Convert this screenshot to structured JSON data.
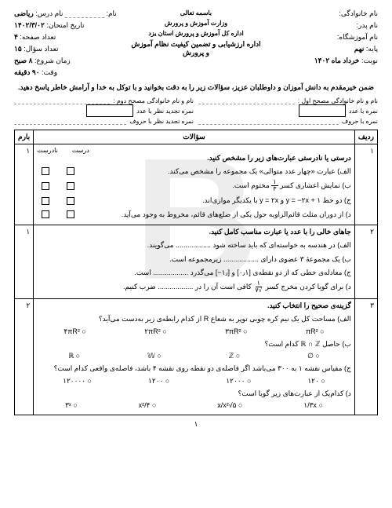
{
  "watermark": "B",
  "header": {
    "right": {
      "family": "نام خانوادگی:",
      "father": "نام پدر:",
      "school": "نام آموزشگاه:",
      "grade_label": "پایه:",
      "grade": "نهم",
      "term_label": "نوبت:",
      "term": "خرداد ماه ۱۴۰۲"
    },
    "center": {
      "bismillah": "باسمه تعالی",
      "ministry": "وزارت آموزش و پرورش",
      "dept": "اداره کل آموزش و پرورش استان یزد",
      "office": "اداره ارزشیابی و تضمین کیفیت نظام آموزش و پرورش"
    },
    "left": {
      "name_label": "نام:",
      "subject_label": "نام درس:",
      "subject": "ریاضی",
      "date_label": "تاریخ امتحان:",
      "date": "۱۴۰۲/۳/۰۲",
      "pages_label": "تعداد صفحه:",
      "pages": "۴",
      "qcount_label": "تعداد سؤال:",
      "qcount": "۱۵",
      "start_label": "زمان شروع:",
      "start": "۸ صبح",
      "duration_label": "وقت:",
      "duration": "۹۰ دقیقه"
    }
  },
  "intro": "ضمن خیرمقدم به دانش آموزان و داوطلبان عزیز، سؤالات زیر را به دقت بخوانید و با توکل به خدا و آرامش خاطر پاسخ دهید.",
  "grader": {
    "g1_name": "نام و نام خانوادگی مصحح اول :",
    "g2_name": "نام و نام خانوادگی مصحح دوم :",
    "score_num": "نمره با عدد",
    "score_num2": "نمره تجدید نظر با عدد",
    "score_txt": "نمره با حروف",
    "score_txt2": "نمره تجدید نظر با حروف"
  },
  "table": {
    "h_idx": "ردیف",
    "h_q": "سؤالات",
    "h_score": "بارم"
  },
  "q1": {
    "idx": "۱",
    "title": "درستی یا نادرستی عبارت‌های زیر را مشخص کنید.",
    "tf_true": "درست",
    "tf_false": "نادرست",
    "a": "الف) عبارت «چهار عدد متوالی» یک مجموعه را مشخص می‌کند.",
    "b_pre": "ب) نمایش اعشاری کسر ",
    "b_frac_n": "۱",
    "b_frac_d": "۳",
    "b_post": " مختوم است.",
    "c": "ج) دو خط y = −۲x + ۱ و y = ۲x با یکدیگر موازی‌اند.",
    "d": "د) از دوران مثلث قائم‌الزاویه حول یکی از ضلع‌های قائم، مخروط به وجود می‌آید.",
    "score": "۱"
  },
  "q2": {
    "idx": "۲",
    "title": "جاهای خالی را با عدد یا عبارت مناسب کامل کنید.",
    "a": "الف) در هندسه به خواسته‌ای که باید ساخته شود .................. می‌گویند.",
    "b": "ب) یک مجموعهٔ ۳ عضوی دارای .................. زیرمجموعه است.",
    "c_pre": "ج) معادله‌ی خطی که از دو نقطه‌ی ",
    "c_pts": "[۰٫۱] و [۱٫−]",
    "c_post": " می‌گذرد .................. است.",
    "d_pre": "د) برای گویا کردن مخرج کسر ",
    "d_frac_n": "۱",
    "d_frac_d": "√۷",
    "d_post": " کافی است آن را در .................. ضرب کنیم.",
    "score": "۱"
  },
  "q3": {
    "idx": "۳",
    "title": "گزینه‌ی صحیح را انتخاب کنید.",
    "a": "الف) مساحت کل یک نیم کره چوبی توپر به شعاع R از کدام رابطه‌ی زیر به‌دست می‌آید؟",
    "a_opts": [
      "○ ۴πR²",
      "○ ۲πR²",
      "○ ۳πR²",
      "○ πR²"
    ],
    "b": "ب) حاصل ℝ ∩ ℤ کدام است؟",
    "b_opts": [
      "○ ℝ",
      "○ 𝕎",
      "○ ℤ",
      "○ ∅"
    ],
    "c": "ج) مقیاس نقشه ۱ به ۳۰۰ می‌باشد اگر فاصله‌ی دو نقطه روی نقشه ۴ باشد، فاصله‌ی واقعی کدام است؟",
    "c_opts": [
      "○ ۱۲۰۰۰۰",
      "○ ۱۲۰۰",
      "○ ۱۲۰۰۰",
      "○ ۱۲۰"
    ],
    "d": "د) کدام‌یک از عبارت‌های زیر گویا است؟",
    "d_opts": [
      "○ ۳ˣ",
      "○ x²/۴",
      "○ ۵√x/x²",
      "○ ۱/۳x"
    ],
    "score": "۲"
  },
  "page_num": "۱"
}
